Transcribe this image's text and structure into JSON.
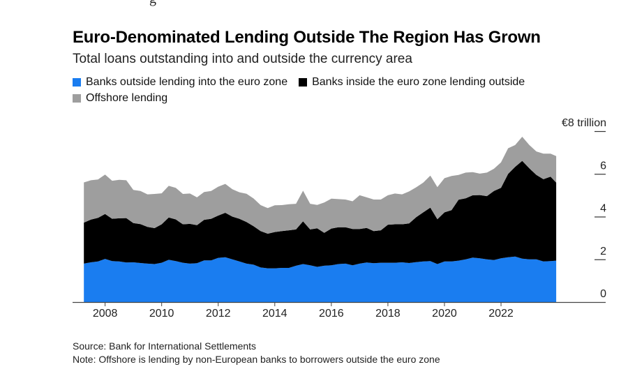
{
  "title": "Euro-Denominated Lending Outside The Region Has Grown",
  "subtitle": "Total loans outstanding into and outside the currency area",
  "source": "Source: Bank for International Settlements",
  "note": "Note: Offshore is lending by non-European banks to borrowers outside the euro zone",
  "colors": {
    "outside_into": "#1a7df0",
    "inside_outside": "#000000",
    "offshore": "#9e9e9e"
  },
  "chart_data": {
    "type": "area",
    "stacked": true,
    "y_unit_label": "€8 trillion",
    "ylim": [
      0,
      8
    ],
    "y_ticks": [
      0,
      2,
      4,
      6,
      8
    ],
    "y_tick_labels": [
      "0",
      "2",
      "4",
      "6",
      "€8 trillion"
    ],
    "xlim": [
      2006.85,
      2025.7
    ],
    "x_ticks": [
      2008,
      2010,
      2012,
      2014,
      2016,
      2018,
      2020,
      2022
    ],
    "x_tick_labels": [
      "2008",
      "2010",
      "2012",
      "2014",
      "2016",
      "2018",
      "2020",
      "2022"
    ],
    "x": [
      2007.25,
      2007.5,
      2007.75,
      2008.0,
      2008.25,
      2008.5,
      2008.75,
      2009.0,
      2009.25,
      2009.5,
      2009.75,
      2010.0,
      2010.25,
      2010.5,
      2010.75,
      2011.0,
      2011.25,
      2011.5,
      2011.75,
      2012.0,
      2012.25,
      2012.5,
      2012.75,
      2013.0,
      2013.25,
      2013.5,
      2013.75,
      2014.0,
      2014.25,
      2014.5,
      2014.75,
      2015.0,
      2015.25,
      2015.5,
      2015.75,
      2016.0,
      2016.25,
      2016.5,
      2016.75,
      2017.0,
      2017.25,
      2017.5,
      2017.75,
      2018.0,
      2018.25,
      2018.5,
      2018.75,
      2019.0,
      2019.25,
      2019.5,
      2019.75,
      2020.0,
      2020.25,
      2020.5,
      2020.75,
      2021.0,
      2021.25,
      2021.5,
      2021.75,
      2022.0,
      2022.25,
      2022.5,
      2022.75,
      2023.0,
      2023.25,
      2023.5,
      2023.75,
      2023.95
    ],
    "legend": [
      {
        "label": "Banks outside lending into the euro zone",
        "color": "#1a7df0"
      },
      {
        "label": "Banks inside the euro zone lending outside",
        "color": "#000000"
      },
      {
        "label": "Offshore lending",
        "color": "#9e9e9e"
      }
    ],
    "series": [
      {
        "name": "Banks outside lending into the euro zone",
        "values": [
          1.8,
          1.86,
          1.9,
          2.02,
          1.92,
          1.9,
          1.85,
          1.86,
          1.83,
          1.8,
          1.78,
          1.84,
          1.98,
          1.92,
          1.84,
          1.8,
          1.82,
          1.95,
          1.95,
          2.07,
          2.1,
          2.0,
          1.9,
          1.8,
          1.75,
          1.62,
          1.58,
          1.58,
          1.6,
          1.6,
          1.7,
          1.78,
          1.72,
          1.65,
          1.7,
          1.72,
          1.78,
          1.8,
          1.72,
          1.8,
          1.85,
          1.82,
          1.84,
          1.84,
          1.84,
          1.86,
          1.83,
          1.87,
          1.9,
          1.92,
          1.78,
          1.9,
          1.9,
          1.94,
          2.0,
          2.08,
          2.05,
          2.0,
          1.97,
          2.05,
          2.1,
          2.13,
          2.03,
          2.0,
          2.0,
          1.9,
          1.92,
          1.94
        ]
      },
      {
        "name": "Banks inside the euro zone lending outside",
        "values": [
          1.92,
          2.0,
          2.04,
          2.1,
          1.98,
          2.02,
          2.08,
          1.84,
          1.82,
          1.72,
          1.68,
          1.8,
          1.98,
          1.95,
          1.8,
          1.86,
          1.78,
          1.9,
          1.95,
          1.98,
          2.08,
          2.0,
          2.0,
          1.95,
          1.8,
          1.7,
          1.62,
          1.7,
          1.72,
          1.76,
          1.7,
          2.0,
          1.68,
          1.8,
          1.54,
          1.72,
          1.72,
          1.7,
          1.7,
          1.62,
          1.62,
          1.5,
          1.52,
          1.78,
          1.8,
          1.78,
          1.85,
          2.1,
          2.3,
          2.5,
          2.1,
          2.3,
          2.4,
          2.85,
          2.86,
          2.92,
          2.96,
          2.96,
          3.23,
          3.3,
          3.9,
          4.2,
          4.58,
          4.26,
          3.95,
          3.85,
          3.95,
          3.65
        ]
      },
      {
        "name": "Offshore lending",
        "values": [
          1.88,
          1.84,
          1.8,
          1.85,
          1.78,
          1.8,
          1.77,
          1.55,
          1.55,
          1.52,
          1.6,
          1.45,
          1.48,
          1.48,
          1.42,
          1.42,
          1.3,
          1.3,
          1.3,
          1.35,
          1.35,
          1.28,
          1.24,
          1.32,
          1.3,
          1.22,
          1.2,
          1.25,
          1.22,
          1.22,
          1.2,
          1.43,
          1.2,
          1.1,
          1.42,
          1.4,
          1.32,
          1.3,
          1.3,
          1.58,
          1.43,
          1.48,
          1.44,
          1.38,
          1.44,
          1.4,
          1.5,
          1.4,
          1.39,
          1.5,
          1.5,
          1.6,
          1.6,
          1.16,
          1.2,
          1.08,
          1.0,
          1.1,
          1.04,
          1.19,
          1.2,
          1.02,
          1.13,
          1.09,
          1.1,
          1.2,
          1.08,
          1.24
        ]
      }
    ],
    "grid": false
  }
}
